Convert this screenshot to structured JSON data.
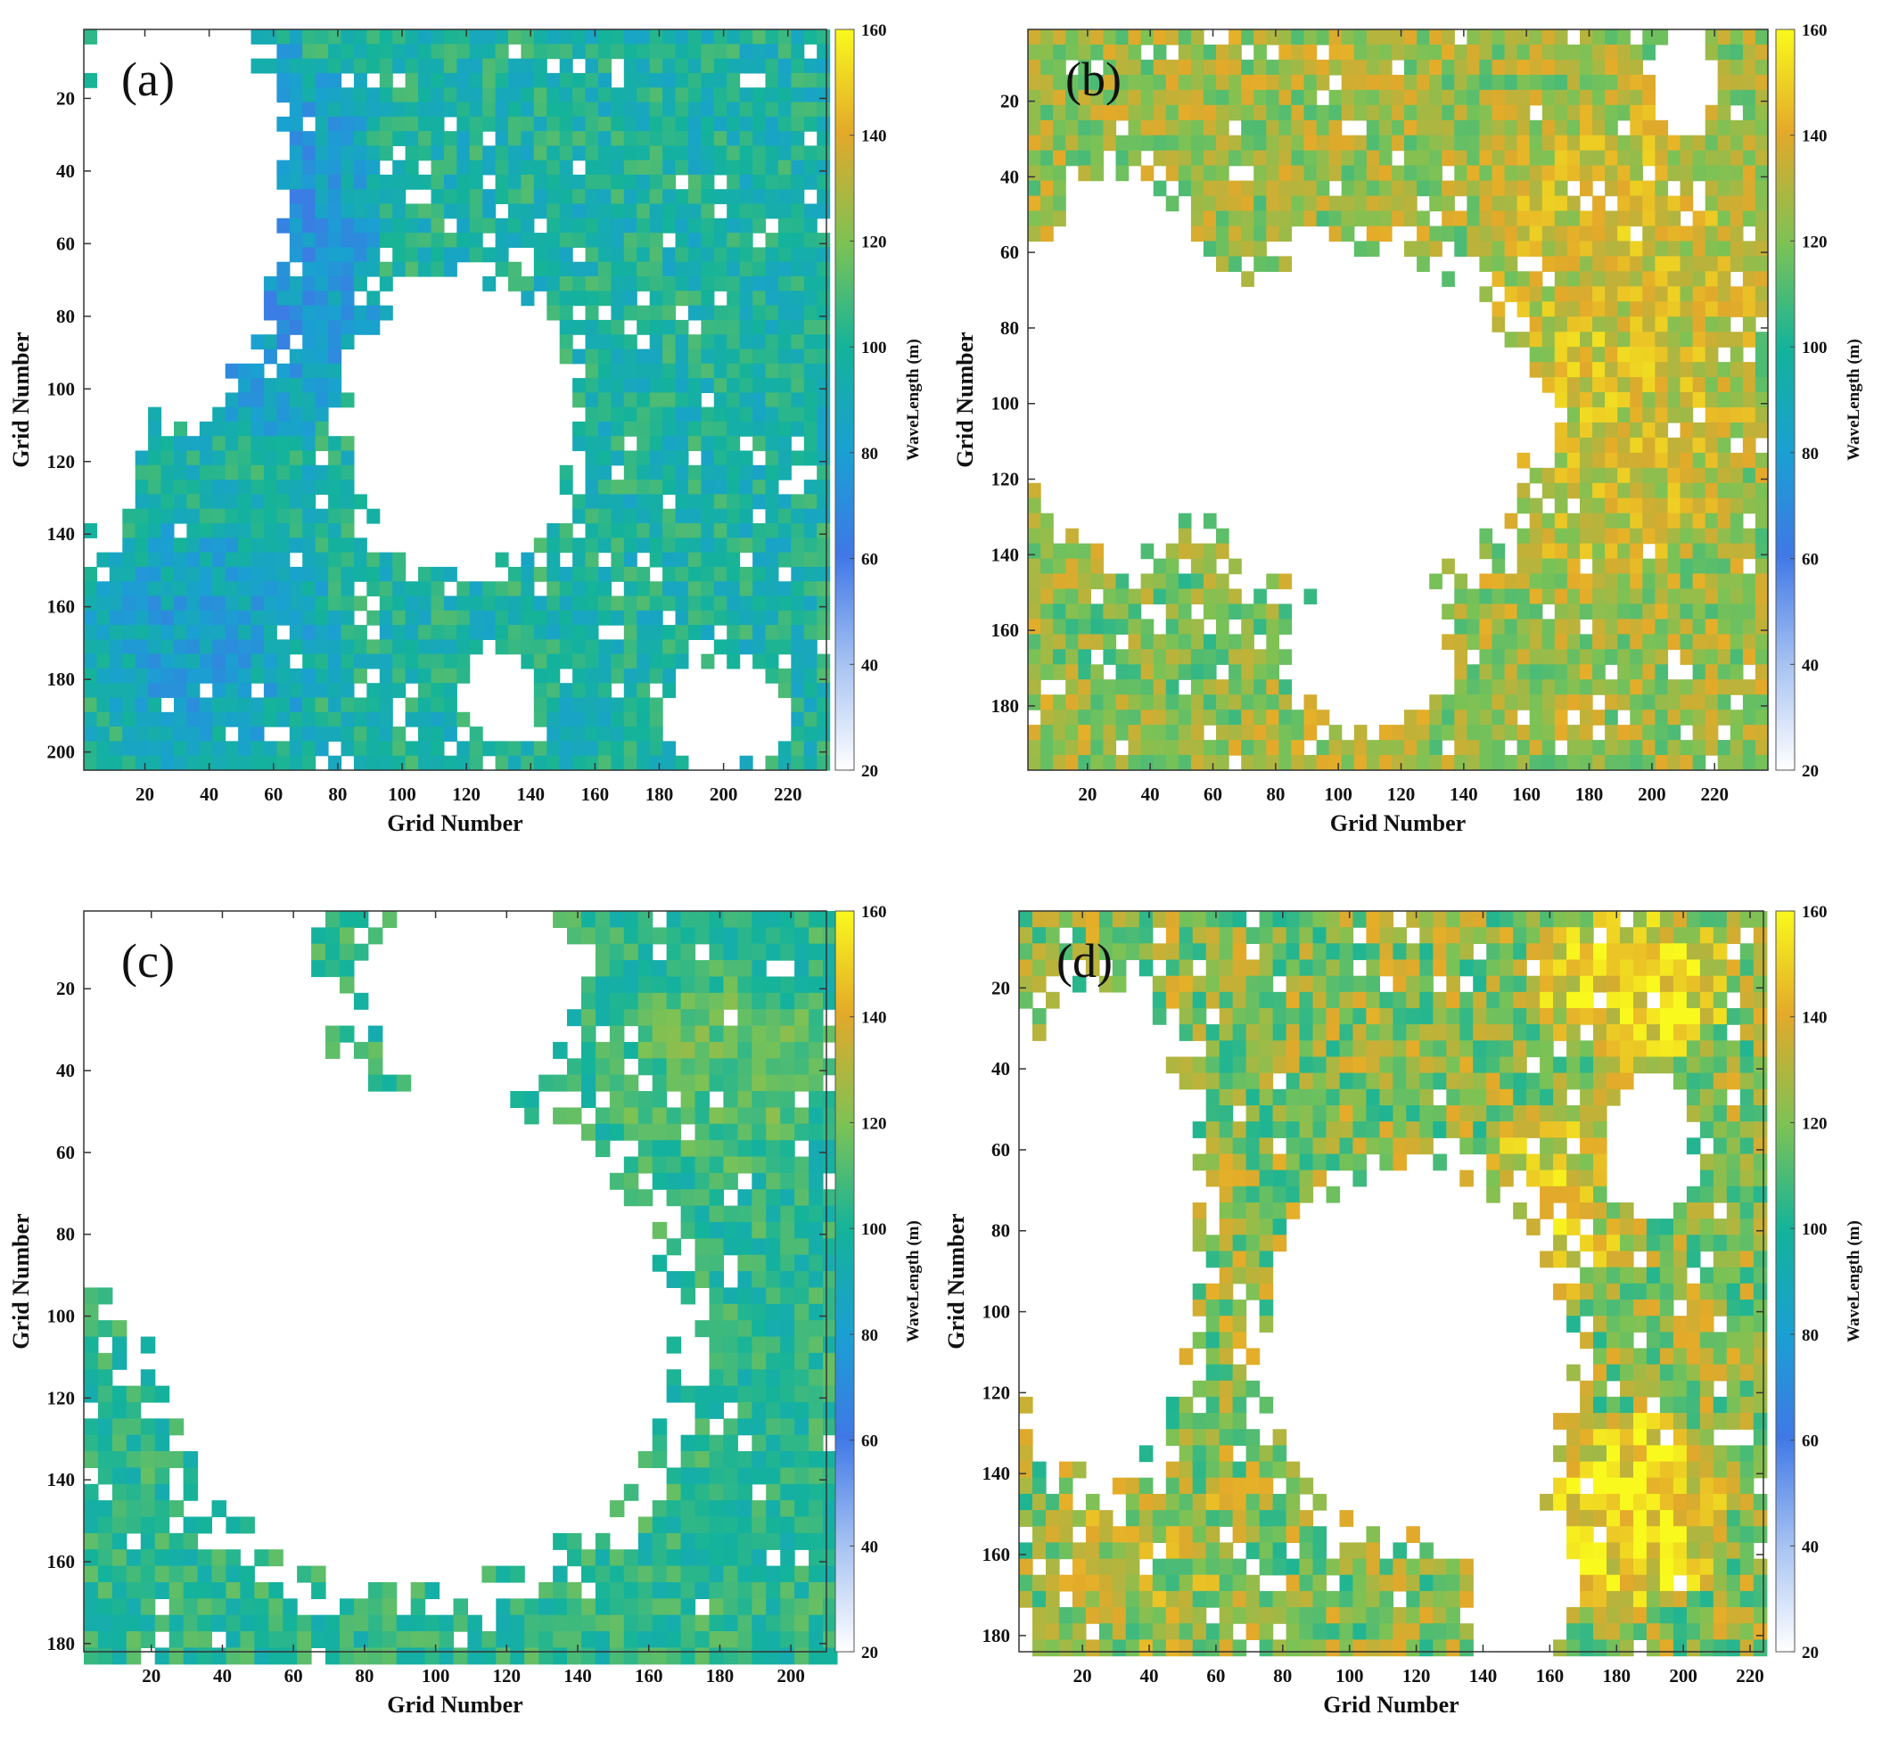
{
  "chart_data": [
    {
      "type": "heatmap",
      "panel_label": "(a)",
      "xlabel": "Grid Number",
      "ylabel": "Grid Number",
      "xlim": [
        1,
        232
      ],
      "ylim": [
        1,
        205
      ],
      "xticks": [
        20,
        40,
        60,
        80,
        100,
        120,
        140,
        160,
        180,
        200,
        220
      ],
      "yticks": [
        20,
        40,
        60,
        80,
        100,
        120,
        140,
        160,
        180,
        200
      ],
      "colorbar": {
        "label": "WaveLength (m)",
        "range": [
          20,
          160
        ],
        "ticks": [
          20,
          40,
          60,
          80,
          100,
          120,
          140,
          160
        ]
      },
      "blanks": [
        {
          "cx": 118,
          "cy": 110,
          "rx": 34,
          "ry": 40
        },
        {
          "cx": 30,
          "cy": 45,
          "rx": 30,
          "ry": 60
        },
        {
          "cx": 8,
          "cy": 100,
          "rx": 10,
          "ry": 45
        },
        {
          "cx": 200,
          "cy": 190,
          "rx": 18,
          "ry": 14
        },
        {
          "cx": 130,
          "cy": 185,
          "rx": 12,
          "ry": 12
        }
      ],
      "patches": [
        {
          "cx": 60,
          "cy": 60,
          "rx": 35,
          "ry": 55,
          "value": 74
        },
        {
          "cx": 40,
          "cy": 170,
          "rx": 40,
          "ry": 35,
          "value": 82
        }
      ],
      "base_value": 98,
      "spread": 14
    },
    {
      "type": "heatmap",
      "panel_label": "(b)",
      "xlabel": "Grid Number",
      "ylabel": "Grid Number",
      "xlim": [
        1,
        237
      ],
      "ylim": [
        1,
        197
      ],
      "xticks": [
        20,
        40,
        60,
        80,
        100,
        120,
        140,
        160,
        180,
        200,
        220
      ],
      "yticks": [
        20,
        40,
        60,
        80,
        100,
        120,
        140,
        160,
        180
      ],
      "colorbar": {
        "label": "WaveLength (m)",
        "range": [
          20,
          160
        ],
        "ticks": [
          20,
          40,
          60,
          80,
          100,
          120,
          140,
          160
        ]
      },
      "blanks": [
        {
          "cx": 105,
          "cy": 105,
          "rx": 55,
          "ry": 45
        },
        {
          "cx": 30,
          "cy": 90,
          "rx": 30,
          "ry": 50
        },
        {
          "cx": 110,
          "cy": 165,
          "rx": 25,
          "ry": 20
        },
        {
          "cx": 210,
          "cy": 15,
          "rx": 10,
          "ry": 12
        }
      ],
      "patches": [
        {
          "cx": 190,
          "cy": 80,
          "rx": 45,
          "ry": 70,
          "value": 138
        },
        {
          "cx": 50,
          "cy": 160,
          "rx": 45,
          "ry": 25,
          "value": 118
        }
      ],
      "base_value": 126,
      "spread": 16
    },
    {
      "type": "heatmap",
      "panel_label": "(c)",
      "xlabel": "Grid Number",
      "ylabel": "Grid Number",
      "xlim": [
        1,
        210
      ],
      "ylim": [
        1,
        182
      ],
      "xticks": [
        20,
        40,
        60,
        80,
        100,
        120,
        140,
        160,
        180,
        200
      ],
      "yticks": [
        20,
        40,
        60,
        80,
        100,
        120,
        140,
        160,
        180
      ],
      "colorbar": {
        "label": "WaveLength (m)",
        "range": [
          20,
          160
        ],
        "ticks": [
          20,
          40,
          60,
          80,
          100,
          120,
          140,
          160
        ]
      },
      "blanks": [
        {
          "cx": 95,
          "cy": 105,
          "rx": 70,
          "ry": 60
        },
        {
          "cx": 30,
          "cy": 40,
          "rx": 40,
          "ry": 60
        },
        {
          "cx": 110,
          "cy": 20,
          "rx": 30,
          "ry": 25
        }
      ],
      "patches": [
        {
          "cx": 180,
          "cy": 40,
          "rx": 30,
          "ry": 25,
          "value": 115
        }
      ],
      "base_value": 104,
      "spread": 12
    },
    {
      "type": "heatmap",
      "panel_label": "(d)",
      "xlabel": "Grid Number",
      "ylabel": "Grid Number",
      "xlim": [
        1,
        224
      ],
      "ylim": [
        1,
        184
      ],
      "xticks": [
        20,
        40,
        60,
        80,
        100,
        120,
        140,
        160,
        180,
        200,
        220
      ],
      "yticks": [
        20,
        40,
        60,
        80,
        100,
        120,
        140,
        160,
        180
      ],
      "colorbar": {
        "label": "WaveLength (m)",
        "range": [
          20,
          160
        ],
        "ticks": [
          20,
          40,
          60,
          80,
          100,
          120,
          140,
          160
        ]
      },
      "blanks": [
        {
          "cx": 120,
          "cy": 110,
          "rx": 45,
          "ry": 45
        },
        {
          "cx": 25,
          "cy": 80,
          "rx": 30,
          "ry": 60
        },
        {
          "cx": 190,
          "cy": 60,
          "rx": 12,
          "ry": 18
        },
        {
          "cx": 150,
          "cy": 165,
          "rx": 15,
          "ry": 20
        }
      ],
      "patches": [
        {
          "cx": 185,
          "cy": 20,
          "rx": 30,
          "ry": 20,
          "value": 152
        },
        {
          "cx": 185,
          "cy": 150,
          "rx": 30,
          "ry": 25,
          "value": 156
        },
        {
          "cx": 40,
          "cy": 160,
          "rx": 30,
          "ry": 25,
          "value": 128
        },
        {
          "cx": 160,
          "cy": 75,
          "rx": 25,
          "ry": 25,
          "value": 140
        }
      ],
      "base_value": 122,
      "spread": 20
    }
  ]
}
